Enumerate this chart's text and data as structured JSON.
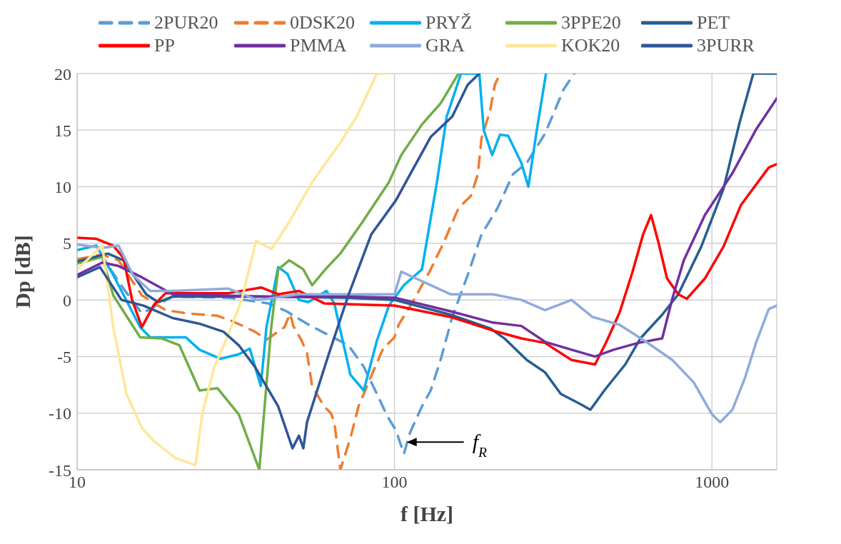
{
  "chart_data": {
    "type": "line",
    "xlabel": "f [Hz]",
    "ylabel": "Dp [dB]",
    "log": "x",
    "xlim": [
      10,
      1600
    ],
    "xticks": [
      10,
      100,
      1000
    ],
    "ylim": [
      -15,
      20
    ],
    "yticks": [
      -15,
      -10,
      -5,
      0,
      5,
      10,
      15,
      20
    ],
    "grid": true,
    "legend": "top",
    "marker": "none",
    "annotations": [
      "f$_{R}$"
    ],
    "series": [
      {
        "name": "2PUR20",
        "color": "#5b9bd5",
        "line_style": "dashed",
        "x": [
          10,
          12,
          14,
          16,
          20,
          30,
          40,
          45.7,
          53,
          60,
          71.5,
          80,
          88,
          95,
          101,
          107,
          112,
          122,
          130,
          140,
          152,
          170,
          188,
          211,
          236,
          261,
          298,
          341,
          368
        ],
        "values": [
          3.5,
          3.8,
          1,
          -1.2,
          0.3,
          0.2,
          -0.3,
          -1,
          -2.1,
          -2.9,
          -4,
          -5.9,
          -8.3,
          -10.3,
          -11.5,
          -13.6,
          -11.7,
          -9.4,
          -8,
          -5.2,
          -1.5,
          2.2,
          5.8,
          8.1,
          11.1,
          12.1,
          14.7,
          18.6,
          20
        ]
      },
      {
        "name": "0DSK20",
        "color": "#ed7d31",
        "line_style": "dashed",
        "x": [
          10,
          12,
          13.5,
          16,
          19,
          22.4,
          27.7,
          31,
          36.3,
          39.6,
          45,
          46.9,
          48,
          51,
          53,
          55,
          60,
          63,
          64.6,
          67.5,
          72.6,
          77,
          86,
          92,
          100,
          103,
          115,
          130,
          143,
          159,
          174,
          183,
          188,
          200,
          207,
          215
        ],
        "values": [
          3.6,
          4,
          3.5,
          0.4,
          -0.9,
          -1.2,
          -1.4,
          -1.9,
          -2.8,
          -3.5,
          -2.4,
          -1.2,
          -2.3,
          -3.6,
          -4.7,
          -7.6,
          -9.4,
          -10,
          -10.8,
          -15,
          -12.2,
          -9.4,
          -6.2,
          -4.3,
          -3.3,
          -2.2,
          0,
          2.7,
          5.1,
          8.1,
          9.2,
          11.1,
          14.3,
          16.7,
          19,
          20
        ]
      },
      {
        "name": "PRYŽ",
        "color": "#00b0f0",
        "line_style": "solid",
        "x": [
          10,
          11.5,
          13,
          15.8,
          17,
          22,
          24.3,
          28.3,
          32.3,
          35,
          37.9,
          39.5,
          43,
          46,
          50,
          53.5,
          61,
          64.6,
          72.6,
          80,
          88,
          96,
          107,
          122,
          136,
          146,
          162,
          175,
          185,
          191,
          203,
          215,
          228,
          251,
          264,
          281,
          300
        ],
        "values": [
          4.4,
          4.8,
          2.2,
          -2.4,
          -3.3,
          -3.3,
          -4.4,
          -5.2,
          -4.8,
          -4.3,
          -7.6,
          -2.4,
          2.9,
          2.3,
          0,
          -0.2,
          0.8,
          -0.3,
          -6.6,
          -8,
          -3.6,
          -0.5,
          1.3,
          2.7,
          10.4,
          16.2,
          20,
          20,
          20,
          15,
          12.8,
          14.6,
          14.5,
          12.1,
          10,
          15.1,
          20
        ]
      },
      {
        "name": "3PPE20",
        "color": "#70ad47",
        "line_style": "solid",
        "x": [
          10,
          12,
          13,
          15.8,
          18.5,
          21,
          24.3,
          27.7,
          32.3,
          37.5,
          40.9,
          43,
          46.6,
          51.6,
          55,
          61,
          67.5,
          79.3,
          96,
          105,
          122,
          140,
          159
        ],
        "values": [
          3.2,
          3.8,
          0.4,
          -3.3,
          -3.4,
          -4,
          -8,
          -7.8,
          -10.1,
          -15,
          -2.4,
          2.7,
          3.5,
          2.7,
          1.3,
          2.8,
          4.1,
          6.9,
          10.4,
          12.8,
          15.5,
          17.4,
          20
        ]
      },
      {
        "name": "PET",
        "color": "#255e91",
        "line_style": "solid",
        "x": [
          10,
          12.5,
          14,
          16.5,
          18,
          20,
          40,
          70,
          100,
          150,
          200,
          222,
          261,
          298,
          334,
          385,
          414,
          458,
          533,
          595,
          697,
          783,
          925,
          1087,
          1220,
          1350,
          1600
        ],
        "values": [
          3.4,
          4.1,
          3.5,
          0.5,
          -0.2,
          0.3,
          0.3,
          0.2,
          0,
          -1.3,
          -2.5,
          -3.4,
          -5.3,
          -6.4,
          -8.3,
          -9.2,
          -9.7,
          -8,
          -5.7,
          -3.4,
          -1.3,
          0.5,
          4.7,
          9.8,
          15.6,
          20,
          20
        ]
      },
      {
        "name": "PP",
        "color": "#ff0000",
        "line_style": "solid",
        "x": [
          10,
          11.5,
          13,
          14,
          14.9,
          16,
          17.4,
          19,
          30,
          38,
          43,
          50,
          60,
          100,
          150,
          204,
          251,
          298,
          361,
          428,
          465,
          512,
          561,
          607,
          643,
          678,
          722,
          783,
          833,
          950,
          1087,
          1235,
          1510,
          1600
        ],
        "values": [
          5.5,
          5.4,
          4.8,
          3.7,
          0,
          -2.4,
          -0.5,
          0.6,
          0.6,
          1.1,
          0.5,
          0.8,
          -0.3,
          -0.5,
          -1.5,
          -2.7,
          -3.4,
          -3.8,
          -5.3,
          -5.7,
          -3.7,
          -1.1,
          2.4,
          5.8,
          7.5,
          5.1,
          1.9,
          0.5,
          0.1,
          1.9,
          4.7,
          8.4,
          11.7,
          12
        ]
      },
      {
        "name": "PMMA",
        "color": "#7030a0",
        "line_style": "solid",
        "x": [
          10,
          12,
          13.5,
          16,
          20,
          40,
          70,
          100,
          150,
          204,
          251,
          298,
          361,
          428,
          490,
          585,
          697,
          750,
          815,
          950,
          1160,
          1380,
          1600
        ],
        "values": [
          2.2,
          3.3,
          3,
          2,
          0.5,
          0.3,
          0.3,
          0.2,
          -1,
          -2,
          -2.3,
          -3.7,
          -4.4,
          -5,
          -4.4,
          -3.8,
          -3.4,
          0.1,
          3.5,
          7.5,
          11.2,
          15.1,
          17.8
        ]
      },
      {
        "name": "GRA",
        "color": "#8faadc",
        "line_style": "solid",
        "x": [
          10,
          12,
          13.5,
          15,
          17,
          20,
          30,
          37,
          50,
          70,
          100,
          105,
          150,
          204,
          251,
          298,
          361,
          420,
          512,
          620,
          750,
          877,
          1000,
          1062,
          1160,
          1270,
          1380,
          1510,
          1600
        ],
        "values": [
          4.9,
          4.6,
          4.8,
          2.2,
          0.8,
          0.8,
          1,
          0,
          0.5,
          0.5,
          0.5,
          2.5,
          0.5,
          0.5,
          0,
          -0.9,
          0,
          -1.5,
          -2.2,
          -3.7,
          -5.3,
          -7.3,
          -10.1,
          -10.8,
          -9.7,
          -6.9,
          -3.7,
          -0.8,
          -0.5
        ]
      },
      {
        "name": "KOK20",
        "color": "#ffe699",
        "line_style": "solid",
        "x": [
          10,
          12,
          13,
          14.3,
          16,
          17.5,
          20.5,
          23.6,
          24.8,
          27,
          30,
          33,
          36.6,
          41,
          45.7,
          55,
          67.5,
          76,
          88,
          95
        ],
        "values": [
          2.7,
          4.8,
          -2.4,
          -8.3,
          -11.3,
          -12.5,
          -14,
          -14.6,
          -10,
          -6,
          -3,
          0,
          5.2,
          4.5,
          6.5,
          10.4,
          13.9,
          16.2,
          20,
          20
        ]
      },
      {
        "name": "3PURR",
        "color": "#2f5597",
        "line_style": "solid",
        "x": [
          10,
          11.8,
          13.8,
          16.2,
          20,
          24.3,
          28.9,
          32.3,
          36.3,
          43,
          47.7,
          50,
          51.6,
          53,
          62.2,
          71.5,
          84.5,
          101,
          112,
          130,
          152,
          170,
          185
        ],
        "values": [
          2,
          2.9,
          0,
          -0.5,
          -1.6,
          -2.1,
          -2.8,
          -4,
          -5.9,
          -9.4,
          -13.1,
          -12,
          -13.1,
          -10.8,
          -4.7,
          0.4,
          5.8,
          8.8,
          11.1,
          14.4,
          16.2,
          19,
          20
        ]
      }
    ]
  }
}
